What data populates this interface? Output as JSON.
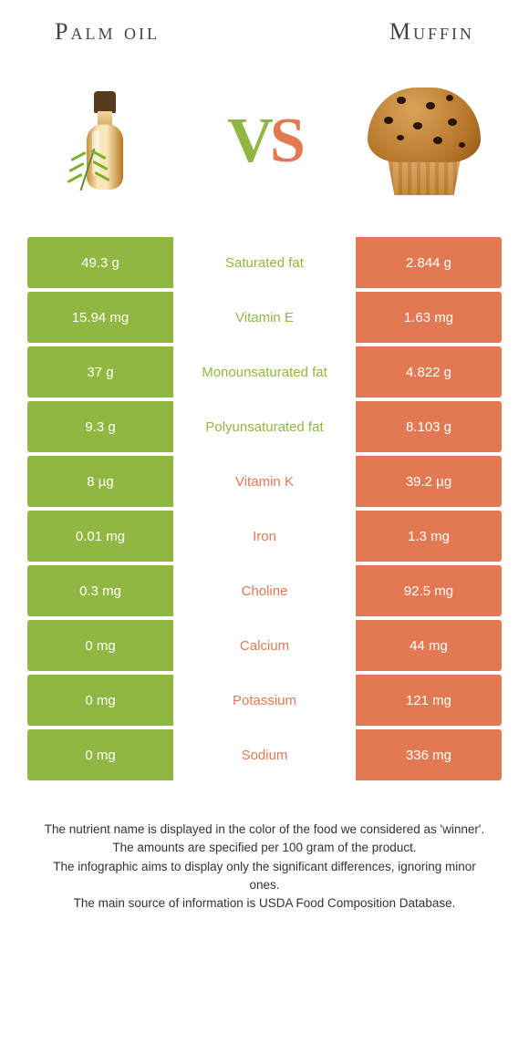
{
  "header": {
    "left_title": "Palm oil",
    "right_title": "Muffin",
    "vs_v": "V",
    "vs_s": "S"
  },
  "colors": {
    "green": "#8fb741",
    "orange": "#e37952",
    "mid_bg": "#ffffff",
    "light_row_text": "#ffffff"
  },
  "table": {
    "rows": [
      {
        "left": "49.3 g",
        "label": "Saturated fat",
        "right": "2.844 g",
        "winner": "left"
      },
      {
        "left": "15.94 mg",
        "label": "Vitamin E",
        "right": "1.63 mg",
        "winner": "left"
      },
      {
        "left": "37 g",
        "label": "Monounsaturated fat",
        "right": "4.822 g",
        "winner": "left"
      },
      {
        "left": "9.3 g",
        "label": "Polyunsaturated fat",
        "right": "8.103 g",
        "winner": "left"
      },
      {
        "left": "8 µg",
        "label": "Vitamin K",
        "right": "39.2 µg",
        "winner": "right"
      },
      {
        "left": "0.01 mg",
        "label": "Iron",
        "right": "1.3 mg",
        "winner": "right"
      },
      {
        "left": "0.3 mg",
        "label": "Choline",
        "right": "92.5 mg",
        "winner": "right"
      },
      {
        "left": "0 mg",
        "label": "Calcium",
        "right": "44 mg",
        "winner": "right"
      },
      {
        "left": "0 mg",
        "label": "Potassium",
        "right": "121 mg",
        "winner": "right"
      },
      {
        "left": "0 mg",
        "label": "Sodium",
        "right": "336 mg",
        "winner": "right"
      }
    ]
  },
  "footer": {
    "line1": "The nutrient name is displayed in the color of the food we considered as 'winner'.",
    "line2": "The amounts are specified per 100 gram of the product.",
    "line3": "The infographic aims to display only the significant differences, ignoring minor ones.",
    "line4": "The main source of information is USDA Food Composition Database."
  }
}
